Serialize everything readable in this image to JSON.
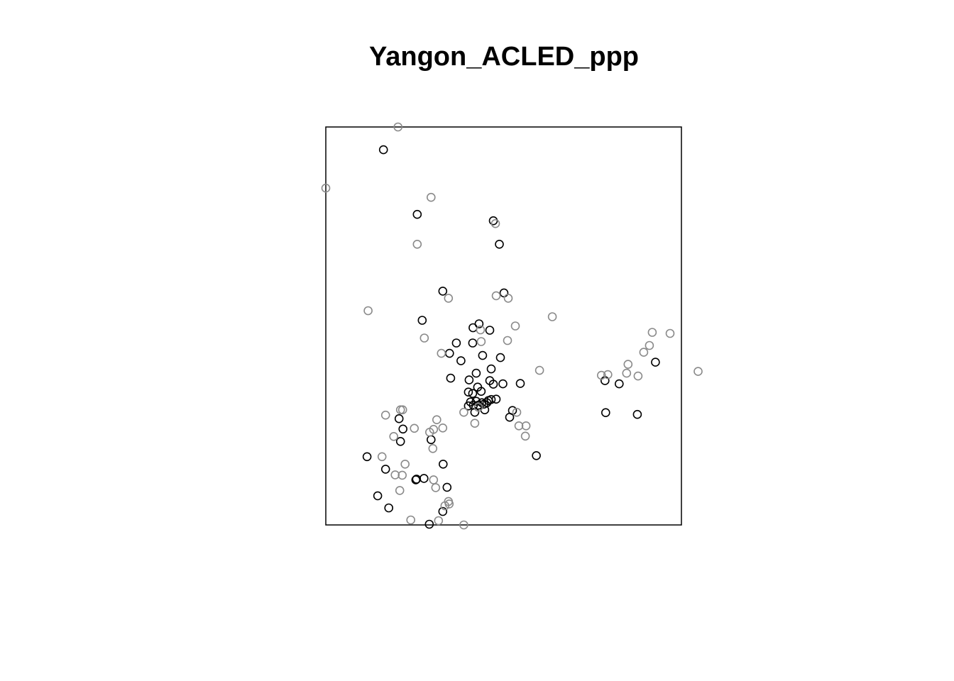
{
  "chart_data": {
    "type": "scatter",
    "title": "Yangon_ACLED_ppp",
    "xlabel": "",
    "ylabel": "",
    "xlim": [
      0,
      100
    ],
    "ylim": [
      0,
      112
    ],
    "axes": false,
    "grid": false,
    "legend": "none",
    "marker": "open-circle",
    "colors": {
      "frame": "#000000",
      "marker_dark": "#000000",
      "marker_mid": "#3c3c3c",
      "marker_light": "#8a8a8a"
    },
    "series": [
      {
        "shade": "dark",
        "points": [
          [
            16.2,
            105.6
          ],
          [
            25.7,
            87.4
          ],
          [
            47.1,
            85.6
          ],
          [
            48.8,
            79.0
          ],
          [
            32.9,
            65.8
          ],
          [
            50.1,
            65.3
          ],
          [
            27.1,
            57.6
          ],
          [
            43.1,
            56.6
          ],
          [
            41.4,
            55.5
          ],
          [
            46.1,
            54.8
          ],
          [
            36.7,
            51.2
          ],
          [
            41.3,
            51.2
          ],
          [
            34.8,
            48.3
          ],
          [
            44.1,
            47.7
          ],
          [
            38.0,
            46.2
          ],
          [
            49.1,
            47.1
          ],
          [
            46.5,
            43.9
          ],
          [
            42.3,
            42.7
          ],
          [
            40.3,
            40.8
          ],
          [
            46.1,
            40.6
          ],
          [
            35.1,
            41.3
          ],
          [
            49.8,
            39.7
          ],
          [
            54.7,
            39.8
          ],
          [
            42.7,
            38.8
          ],
          [
            47.1,
            39.6
          ],
          [
            40.1,
            37.4
          ],
          [
            41.3,
            37.0
          ],
          [
            43.7,
            37.6
          ],
          [
            40.7,
            34.6
          ],
          [
            42.3,
            34.8
          ],
          [
            43.9,
            34.4
          ],
          [
            45.7,
            35.0
          ],
          [
            46.5,
            35.3
          ],
          [
            41.5,
            33.7
          ],
          [
            42.9,
            33.7
          ],
          [
            44.5,
            34.0
          ],
          [
            45.3,
            34.4
          ],
          [
            47.9,
            35.4
          ],
          [
            40.1,
            33.5
          ],
          [
            41.9,
            31.7
          ],
          [
            44.7,
            32.4
          ],
          [
            52.5,
            32.2
          ],
          [
            51.7,
            30.3
          ],
          [
            82.5,
            39.7
          ],
          [
            92.7,
            45.8
          ],
          [
            78.5,
            40.6
          ],
          [
            78.7,
            31.6
          ],
          [
            87.6,
            31.1
          ],
          [
            20.6,
            29.9
          ],
          [
            21.7,
            27.0
          ],
          [
            21.0,
            23.5
          ],
          [
            29.6,
            24.0
          ],
          [
            11.6,
            19.2
          ],
          [
            16.8,
            15.7
          ],
          [
            33.0,
            17.1
          ],
          [
            25.3,
            12.7
          ],
          [
            27.6,
            13.1
          ],
          [
            25.5,
            12.9
          ],
          [
            14.6,
            8.2
          ],
          [
            34.1,
            10.6
          ],
          [
            17.7,
            4.8
          ],
          [
            32.9,
            3.8
          ],
          [
            29.1,
            0.2
          ],
          [
            59.2,
            19.5
          ]
        ]
      },
      {
        "shade": "light",
        "points": [
          [
            20.3,
            112.0
          ],
          [
            0.0,
            94.8
          ],
          [
            29.6,
            92.2
          ],
          [
            47.7,
            84.8
          ],
          [
            25.7,
            79.0
          ],
          [
            47.9,
            64.5
          ],
          [
            34.5,
            63.8
          ],
          [
            51.3,
            63.8
          ],
          [
            11.9,
            60.3
          ],
          [
            63.7,
            58.6
          ],
          [
            53.3,
            56.0
          ],
          [
            43.5,
            54.9
          ],
          [
            27.7,
            52.6
          ],
          [
            51.1,
            51.9
          ],
          [
            43.7,
            51.6
          ],
          [
            32.5,
            48.3
          ],
          [
            60.1,
            43.5
          ],
          [
            77.5,
            42.1
          ],
          [
            79.3,
            42.3
          ],
          [
            84.6,
            42.7
          ],
          [
            87.8,
            41.9
          ],
          [
            85.0,
            45.2
          ],
          [
            89.4,
            48.6
          ],
          [
            91.0,
            50.5
          ],
          [
            104.7,
            43.2
          ],
          [
            91.8,
            54.2
          ],
          [
            96.8,
            53.9
          ],
          [
            38.8,
            31.7
          ],
          [
            41.9,
            28.6
          ],
          [
            42.9,
            33.1
          ],
          [
            53.7,
            31.7
          ],
          [
            56.3,
            27.9
          ],
          [
            54.3,
            27.9
          ],
          [
            56.1,
            25.0
          ],
          [
            16.8,
            30.9
          ],
          [
            21.0,
            32.4
          ],
          [
            21.6,
            32.4
          ],
          [
            31.2,
            29.6
          ],
          [
            32.9,
            27.3
          ],
          [
            30.3,
            26.9
          ],
          [
            24.9,
            27.2
          ],
          [
            29.2,
            26.1
          ],
          [
            19.1,
            24.9
          ],
          [
            15.8,
            19.2
          ],
          [
            30.1,
            21.5
          ],
          [
            22.3,
            17.1
          ],
          [
            19.5,
            14.1
          ],
          [
            21.5,
            14.0
          ],
          [
            30.3,
            12.7
          ],
          [
            30.9,
            10.5
          ],
          [
            20.8,
            9.7
          ],
          [
            34.5,
            6.6
          ],
          [
            34.7,
            5.9
          ],
          [
            33.5,
            5.4
          ],
          [
            23.9,
            1.4
          ],
          [
            31.7,
            1.2
          ],
          [
            38.8,
            0.0
          ]
        ]
      }
    ]
  }
}
